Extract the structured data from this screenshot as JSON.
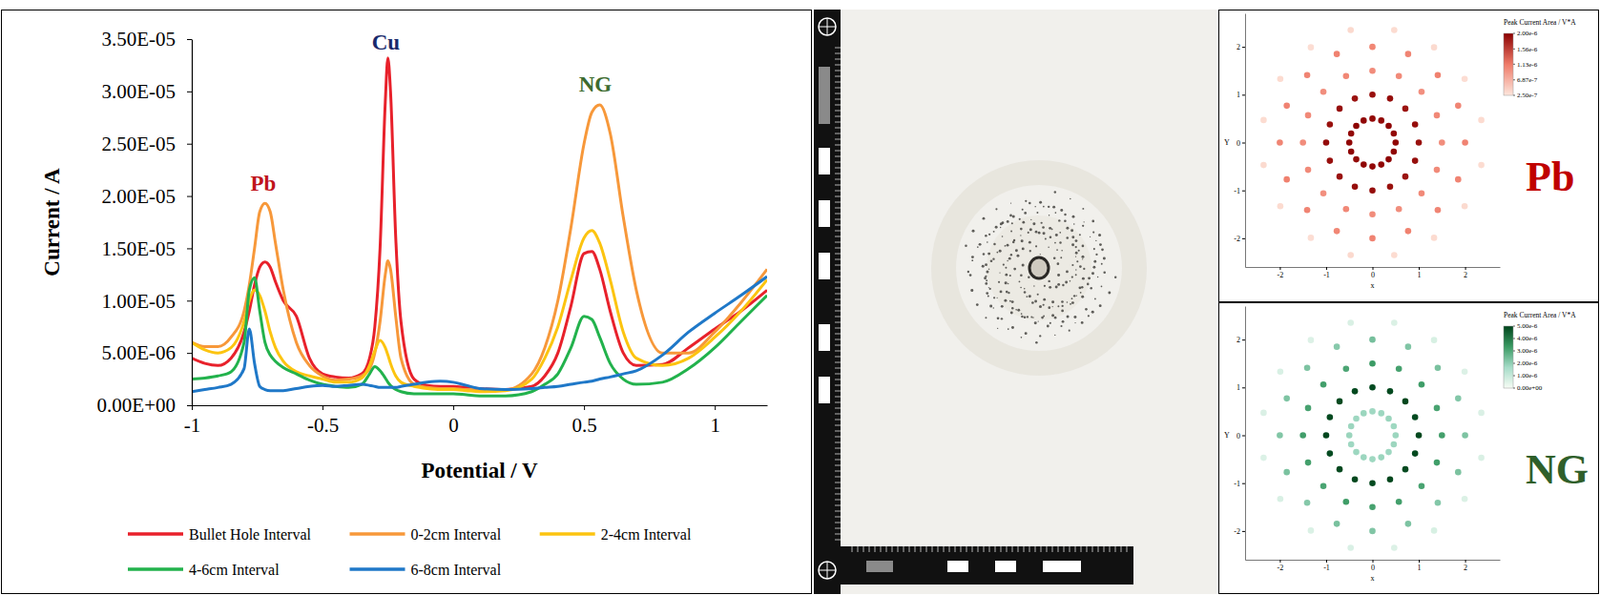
{
  "chart_data": [
    {
      "type": "line",
      "xlabel": "Potential / V",
      "ylabel": "Current / A",
      "x": [
        -1,
        -0.95,
        -0.9,
        -0.85,
        -0.8,
        -0.78,
        -0.76,
        -0.74,
        -0.72,
        -0.7,
        -0.68,
        -0.65,
        -0.6,
        -0.55,
        -0.5,
        -0.45,
        -0.4,
        -0.35,
        -0.32,
        -0.3,
        -0.28,
        -0.26,
        -0.25,
        -0.24,
        -0.22,
        -0.2,
        -0.15,
        -0.1,
        -0.05,
        0,
        0.05,
        0.1,
        0.2,
        0.3,
        0.35,
        0.4,
        0.45,
        0.5,
        0.53,
        0.56,
        0.6,
        0.65,
        0.7,
        0.8,
        0.9,
        1.0,
        1.1,
        1.2
      ],
      "xlim": [
        -1,
        1.2
      ],
      "xticks": [
        -1,
        -0.5,
        0,
        0.5,
        1
      ],
      "ylim": [
        0,
        3.5e-05
      ],
      "yticks": [
        {
          "value": 0,
          "label": "0.00E+00"
        },
        {
          "value": 5e-06,
          "label": "5.00E-06"
        },
        {
          "value": 1e-05,
          "label": "1.00E-05"
        },
        {
          "value": 1.5e-05,
          "label": "1.50E-05"
        },
        {
          "value": 2e-05,
          "label": "2.00E-05"
        },
        {
          "value": 2.5e-05,
          "label": "2.50E-05"
        },
        {
          "value": 3e-05,
          "label": "3.00E-05"
        },
        {
          "value": 3.5e-05,
          "label": "3.50E-05"
        }
      ],
      "grid": false,
      "legend": "bottom",
      "series": [
        {
          "name": "Bullet Hole Interval",
          "color": "#e8212b",
          "values": [
            4.5e-06,
            4e-06,
            3.8e-06,
            4.5e-06,
            7e-06,
            9e-06,
            1.15e-05,
            1.32e-05,
            1.37e-05,
            1.32e-05,
            1.18e-05,
            1e-05,
            8.5e-06,
            4.5e-06,
            3e-06,
            2.7e-06,
            2.6e-06,
            3e-06,
            4.5e-06,
            7.5e-06,
            1.5e-05,
            2.9e-05,
            3.32e-05,
            3e-05,
            1.6e-05,
            8e-06,
            2.5e-06,
            1.9e-06,
            1.8e-06,
            1.8e-06,
            1.7e-06,
            1.6e-06,
            1.5e-06,
            1.8e-06,
            2.8e-06,
            5e-06,
            9.5e-06,
            1.45e-05,
            1.47e-05,
            1.3e-05,
            9e-06,
            5e-06,
            3.8e-06,
            3.9e-06,
            5.5e-06,
            7.3e-06,
            9e-06,
            1.1e-05
          ]
        },
        {
          "name": "0-2cm Interval",
          "color": "#f7983a",
          "values": [
            6e-06,
            5.6e-06,
            5.6e-06,
            6.5e-06,
            9e-06,
            1.15e-05,
            1.5e-05,
            1.85e-05,
            1.93e-05,
            1.85e-05,
            1.55e-05,
            1.1e-05,
            6e-06,
            3.8e-06,
            2.8e-06,
            2.4e-06,
            2.5e-06,
            2.8e-06,
            3.5e-06,
            5e-06,
            8e-06,
            1.25e-05,
            1.38e-05,
            1.3e-05,
            8.5e-06,
            4.5e-06,
            2e-06,
            1.7e-06,
            1.6e-06,
            1.6e-06,
            1.5e-06,
            1.5e-06,
            1.5e-06,
            3e-06,
            5.5e-06,
            1e-05,
            1.7e-05,
            2.5e-05,
            2.8e-05,
            2.87e-05,
            2.6e-05,
            1.8e-05,
            1.1e-05,
            5e-06,
            5e-06,
            7e-06,
            9.8e-06,
            1.3e-05
          ]
        },
        {
          "name": "2-4cm Interval",
          "color": "#fcc410",
          "values": [
            6e-06,
            5.3e-06,
            5e-06,
            5.5e-06,
            8e-06,
            1e-05,
            1.1e-05,
            1.05e-05,
            9e-06,
            7e-06,
            5.5e-06,
            4.2e-06,
            3.2e-06,
            2.8e-06,
            2.5e-06,
            2.2e-06,
            2.2e-06,
            2.6e-06,
            3.8e-06,
            5.2e-06,
            6.2e-06,
            5.5e-06,
            4.8e-06,
            4e-06,
            2.8e-06,
            2.2e-06,
            1.8e-06,
            1.6e-06,
            1.5e-06,
            1.5e-06,
            1.4e-06,
            1.3e-06,
            1.4e-06,
            2.5e-06,
            4.5e-06,
            7.5e-06,
            1.2e-05,
            1.6e-05,
            1.67e-05,
            1.55e-05,
            1.2e-05,
            7e-06,
            4.5e-06,
            3.8e-06,
            4.5e-06,
            6.5e-06,
            9e-06,
            1.2e-05
          ]
        },
        {
          "name": "4-6cm Interval",
          "color": "#22b24c",
          "values": [
            2.5e-06,
            2.6e-06,
            2.8e-06,
            3.2e-06,
            6e-06,
            1.1e-05,
            1.22e-05,
            9e-06,
            6e-06,
            4.8e-06,
            4.2e-06,
            3.6e-06,
            3e-06,
            2.4e-06,
            2e-06,
            1.8e-06,
            1.7e-06,
            2e-06,
            3e-06,
            3.7e-06,
            3.3e-06,
            2.6e-06,
            2.2e-06,
            1.9e-06,
            1.5e-06,
            1.3e-06,
            1.1e-06,
            1.1e-06,
            1.1e-06,
            1.1e-06,
            1e-06,
            9e-07,
            9e-07,
            1.3e-06,
            2e-06,
            3e-06,
            5.5e-06,
            8.5e-06,
            8.2e-06,
            6.5e-06,
            4e-06,
            2.5e-06,
            2e-06,
            2.2e-06,
            3.5e-06,
            5.5e-06,
            8e-06,
            1.05e-05
          ]
        },
        {
          "name": "6-8cm Interval",
          "color": "#1f78c8",
          "values": [
            1.3e-06,
            1.5e-06,
            1.7e-06,
            2e-06,
            3.5e-06,
            7.3e-06,
            4e-06,
            1.8e-06,
            1.5e-06,
            1.4e-06,
            1.4e-06,
            1.4e-06,
            1.6e-06,
            1.8e-06,
            1.9e-06,
            1.8e-06,
            1.9e-06,
            2e-06,
            1.9e-06,
            1.8e-06,
            1.7e-06,
            1.7e-06,
            1.7e-06,
            1.7e-06,
            1.7e-06,
            1.8e-06,
            2e-06,
            2.2e-06,
            2.3e-06,
            2.2e-06,
            1.9e-06,
            1.6e-06,
            1.5e-06,
            1.6e-06,
            1.7e-06,
            1.8e-06,
            2e-06,
            2.2e-06,
            2.3e-06,
            2.5e-06,
            2.7e-06,
            3e-06,
            3.3e-06,
            4.8e-06,
            7e-06,
            8.8e-06,
            1.05e-05,
            1.23e-05
          ]
        }
      ],
      "annotations": [
        {
          "text": "Pb",
          "x": -0.727,
          "y": 2.05e-05,
          "color": "#c0141c"
        },
        {
          "text": "Cu",
          "x": -0.258,
          "y": 3.4e-05,
          "color": "#1a2a6c"
        },
        {
          "text": "NG",
          "x": 0.543,
          "y": 3e-05,
          "color": "#3d6b2f"
        }
      ]
    },
    {
      "type": "scatter",
      "title": "Pb",
      "color": "#c00000",
      "xlabel": "x",
      "ylabel": "Y",
      "xlim": [
        -2.75,
        2.75
      ],
      "ylim": [
        -2.6,
        2.7
      ],
      "xticks": [
        -2,
        -1,
        0,
        1,
        2
      ],
      "yticks": [
        -2,
        -1,
        0,
        1,
        2
      ],
      "x": [
        0.5,
        0.46,
        0.35,
        0.19,
        0,
        -0.19,
        -0.35,
        -0.46,
        -0.5,
        -0.46,
        -0.35,
        -0.19,
        0,
        0.19,
        0.35,
        0.46,
        1,
        0.92,
        0.71,
        0.38,
        0,
        -0.38,
        -0.71,
        -0.92,
        -1,
        -0.92,
        -0.71,
        -0.38,
        0,
        0.38,
        0.71,
        0.92,
        1.5,
        1.39,
        1.06,
        0.57,
        0,
        -0.57,
        -1.06,
        -1.39,
        -1.5,
        -1.39,
        -1.06,
        -0.57,
        0,
        0.57,
        1.06,
        1.39,
        2,
        1.85,
        1.41,
        0.77,
        0,
        -0.77,
        -1.41,
        -1.85,
        -2,
        -1.85,
        -1.41,
        -0.77,
        0,
        0.77,
        1.41,
        1.85,
        2.35,
        1.99,
        1.33,
        0.47,
        -0.47,
        -1.33,
        -1.99,
        -2.35,
        -2.35,
        -1.99,
        -1.33,
        -0.47,
        0.47,
        1.33,
        1.99,
        2.35
      ],
      "y": [
        0,
        0.19,
        0.35,
        0.46,
        0.5,
        0.46,
        0.35,
        0.19,
        0,
        -0.19,
        -0.35,
        -0.46,
        -0.5,
        -0.46,
        -0.35,
        -0.19,
        0,
        0.38,
        0.71,
        0.92,
        1,
        0.92,
        0.71,
        0.38,
        0,
        -0.38,
        -0.71,
        -0.92,
        -1,
        -0.92,
        -0.71,
        -0.38,
        0,
        0.57,
        1.06,
        1.39,
        1.5,
        1.39,
        1.06,
        0.57,
        0,
        -0.57,
        -1.06,
        -1.39,
        -1.5,
        -1.39,
        -1.06,
        -0.57,
        0,
        0.77,
        1.41,
        1.85,
        2,
        1.85,
        1.41,
        0.77,
        0,
        -0.77,
        -1.41,
        -1.85,
        -2,
        -1.85,
        -1.41,
        -0.77,
        0.47,
        1.33,
        1.99,
        2.35,
        2.35,
        1.99,
        1.33,
        0.47,
        -0.47,
        -1.33,
        -1.99,
        -2.35,
        -2.35,
        -1.99,
        -1.33,
        -0.47
      ],
      "values": [
        1.96e-06,
        1.94e-06,
        1.97e-06,
        1.95e-06,
        1.93e-06,
        1.96e-06,
        1.98e-06,
        1.94e-06,
        1.95e-06,
        1.97e-06,
        1.93e-06,
        1.96e-06,
        1.94e-06,
        1.95e-06,
        1.97e-06,
        1.96e-06,
        1.88e-06,
        1.9e-06,
        1.86e-06,
        1.91e-06,
        1.89e-06,
        1.87e-06,
        1.9e-06,
        1.88e-06,
        1.92e-06,
        1.89e-06,
        1.87e-06,
        1.9e-06,
        1.91e-06,
        1.88e-06,
        1.86e-06,
        1.9e-06,
        9.8e-07,
        1.02e-06,
        9.6e-07,
        1e-06,
        9.9e-07,
        1.03e-06,
        9.7e-07,
        1.01e-06,
        9.8e-07,
        1e-06,
        9.6e-07,
        1.02e-06,
        9.9e-07,
        9.7e-07,
        1.01e-06,
        1e-06,
        1.06e-06,
        1.04e-06,
        1.08e-06,
        1.05e-06,
        1.03e-06,
        1.07e-06,
        1.05e-06,
        1.06e-06,
        1.04e-06,
        1.08e-06,
        1.05e-06,
        1.03e-06,
        1.06e-06,
        1.07e-06,
        1.04e-06,
        1.05e-06,
        3.4e-07,
        3.2e-07,
        3.5e-07,
        3.3e-07,
        3.6e-07,
        3.2e-07,
        3.4e-07,
        3.3e-07,
        3.5e-07,
        3.4e-07,
        3.2e-07,
        3.6e-07,
        3.3e-07,
        3.4e-07,
        3.5e-07,
        3.3e-07
      ],
      "colorbar": {
        "title": "Peak Current Area / V*A",
        "range": [
          2.5e-07,
          2e-06
        ],
        "colors": [
          "#fde6dc",
          "#ef7b69",
          "#8b0000"
        ],
        "ticks": [
          {
            "value": 2e-06,
            "label": "2.00e-6"
          },
          {
            "value": 1.56e-06,
            "label": "1.56e-6"
          },
          {
            "value": 1.13e-06,
            "label": "1.13e-6"
          },
          {
            "value": 6.87e-07,
            "label": "6.87e-7"
          },
          {
            "value": 2.5e-07,
            "label": "2.50e-7"
          }
        ]
      }
    },
    {
      "type": "scatter",
      "title": "NG",
      "color": "#2f5f2a",
      "xlabel": "x",
      "ylabel": "Y",
      "xlim": [
        -2.75,
        2.75
      ],
      "ylim": [
        -2.6,
        2.7
      ],
      "xticks": [
        -2,
        -1,
        0,
        1,
        2
      ],
      "yticks": [
        -2,
        -1,
        0,
        1,
        2
      ],
      "x": [
        0.5,
        0.46,
        0.35,
        0.19,
        0,
        -0.19,
        -0.35,
        -0.46,
        -0.5,
        -0.46,
        -0.35,
        -0.19,
        0,
        0.19,
        0.35,
        0.46,
        1,
        0.92,
        0.71,
        0.38,
        0,
        -0.38,
        -0.71,
        -0.92,
        -1,
        -0.92,
        -0.71,
        -0.38,
        0,
        0.38,
        0.71,
        0.92,
        1.5,
        1.39,
        1.06,
        0.57,
        0,
        -0.57,
        -1.06,
        -1.39,
        -1.5,
        -1.39,
        -1.06,
        -0.57,
        0,
        0.57,
        1.06,
        1.39,
        2,
        1.85,
        1.41,
        0.77,
        0,
        -0.77,
        -1.41,
        -1.85,
        -2,
        -1.85,
        -1.41,
        -0.77,
        0,
        0.77,
        1.41,
        1.85,
        2.35,
        1.99,
        1.33,
        0.47,
        -0.47,
        -1.33,
        -1.99,
        -2.35,
        -2.35,
        -1.99,
        -1.33,
        -0.47,
        0.47,
        1.33,
        1.99,
        2.35
      ],
      "y": [
        0,
        0.19,
        0.35,
        0.46,
        0.5,
        0.46,
        0.35,
        0.19,
        0,
        -0.19,
        -0.35,
        -0.46,
        -0.5,
        -0.46,
        -0.35,
        -0.19,
        0,
        0.38,
        0.71,
        0.92,
        1,
        0.92,
        0.71,
        0.38,
        0,
        -0.38,
        -0.71,
        -0.92,
        -1,
        -0.92,
        -0.71,
        -0.38,
        0,
        0.57,
        1.06,
        1.39,
        1.5,
        1.39,
        1.06,
        0.57,
        0,
        -0.57,
        -1.06,
        -1.39,
        -1.5,
        -1.39,
        -1.06,
        -0.57,
        0,
        0.77,
        1.41,
        1.85,
        2,
        1.85,
        1.41,
        0.77,
        0,
        -0.77,
        -1.41,
        -1.85,
        -2,
        -1.85,
        -1.41,
        -0.77,
        0.47,
        1.33,
        1.99,
        2.35,
        2.35,
        1.99,
        1.33,
        0.47,
        -0.47,
        -1.33,
        -1.99,
        -2.35,
        -2.35,
        -1.99,
        -1.33,
        -0.47
      ],
      "values": [
        1.82e-06,
        1.78e-06,
        1.85e-06,
        1.8e-06,
        1.76e-06,
        1.83e-06,
        1.79e-06,
        1.81e-06,
        1.84e-06,
        1.77e-06,
        1.8e-06,
        1.82e-06,
        1.78e-06,
        1.85e-06,
        1.79e-06,
        1.81e-06,
        4.92e-06,
        4.88e-06,
        4.95e-06,
        4.9e-06,
        4.86e-06,
        4.93e-06,
        4.89e-06,
        4.91e-06,
        4.94e-06,
        4.87e-06,
        4.9e-06,
        4.92e-06,
        4.88e-06,
        4.95e-06,
        4.89e-06,
        4.91e-06,
        3.2e-06,
        3.1e-06,
        3.25e-06,
        3.15e-06,
        3.3e-06,
        3.05e-06,
        3.2e-06,
        3.12e-06,
        3.22e-06,
        3.18e-06,
        3.08e-06,
        3.26e-06,
        3.14e-06,
        3.2e-06,
        3.1e-06,
        3.24e-06,
        2.3e-06,
        2.2e-06,
        2.35e-06,
        2.25e-06,
        2.4e-06,
        2.15e-06,
        2.3e-06,
        2.28e-06,
        2.22e-06,
        2.33e-06,
        2.18e-06,
        2.36e-06,
        2.24e-06,
        2.3e-06,
        2.2e-06,
        2.32e-06,
        6e-07,
        5.5e-07,
        6.5e-07,
        5.8e-07,
        6.2e-07,
        5.6e-07,
        6.4e-07,
        6e-07,
        5.7e-07,
        6.3e-07,
        5.9e-07,
        6.1e-07,
        5.5e-07,
        6.5e-07,
        5.8e-07,
        6.2e-07
      ],
      "colorbar": {
        "title": "Peak Current Area / V*A",
        "range": [
          0,
          5e-06
        ],
        "colors": [
          "#f7fcf5",
          "#a6dcc8",
          "#3a9a63",
          "#00441b"
        ],
        "ticks": [
          {
            "value": 5e-06,
            "label": "5.00e-6"
          },
          {
            "value": 4e-06,
            "label": "4.00e-6"
          },
          {
            "value": 3e-06,
            "label": "3.00e-6"
          },
          {
            "value": 2e-06,
            "label": "2.00e-6"
          },
          {
            "value": 1e-06,
            "label": "1.00e-6"
          },
          {
            "value": 0,
            "label": "0.00e+00"
          }
        ]
      }
    }
  ]
}
